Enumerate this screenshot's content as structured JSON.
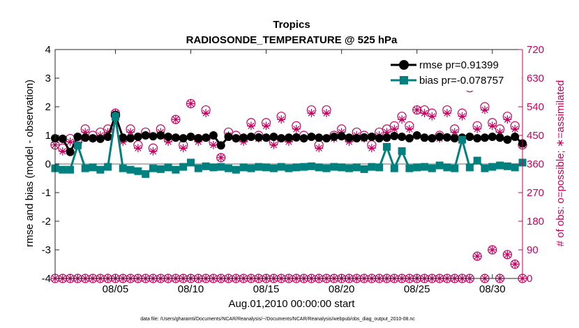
{
  "chart_data": {
    "type": "line",
    "title": "Tropics",
    "subtitle": "RADIOSONDE_TEMPERATURE @ 525 hPa",
    "xlabel": "Aug.01,2010 00:00:00 start",
    "ylabel_left": "rmse and bias (model - observation)",
    "ylabel_right": "# of obs: o=possible; ∗=assimilated",
    "footnote": "data file: /Users/gharamti/Documents/NCAR/Reanalysis/~/Documents/NCAR/Reanalysis/webpub/obs_diag_output_2010-08.nc",
    "xlim": [
      1,
      32
    ],
    "ylim_left": [
      -4,
      4
    ],
    "ylim_right": [
      0,
      720
    ],
    "x_ticks": [
      {
        "value": 5,
        "label": "08/05"
      },
      {
        "value": 10,
        "label": "08/10"
      },
      {
        "value": 15,
        "label": "08/15"
      },
      {
        "value": 20,
        "label": "08/20"
      },
      {
        "value": 25,
        "label": "08/25"
      },
      {
        "value": 30,
        "label": "08/30"
      }
    ],
    "y_ticks_left": [
      -4,
      -3,
      -2,
      -1,
      0,
      1,
      2,
      3,
      4
    ],
    "y_ticks_right": [
      0,
      90,
      180,
      270,
      360,
      450,
      540,
      630,
      720
    ],
    "colors": {
      "rmse": "#000000",
      "bias": "#00807f",
      "obs": "#c8005f",
      "zero_line": "#b3b3b3"
    },
    "legend": [
      {
        "label": "rmse pr=0.91399",
        "color": "#000000",
        "marker": "circle"
      },
      {
        "label": "bias pr=-0.078757",
        "color": "#00807f",
        "marker": "square"
      }
    ],
    "rmse": {
      "x": [
        1.0,
        1.5,
        2.0,
        2.5,
        3.0,
        3.5,
        4.0,
        4.5,
        5.0,
        5.5,
        6.0,
        6.5,
        7.0,
        7.5,
        8.0,
        8.5,
        9.0,
        9.5,
        10.0,
        10.5,
        11.0,
        11.5,
        12.0,
        12.5,
        13.0,
        13.5,
        14.0,
        14.5,
        15.0,
        15.5,
        16.0,
        16.5,
        17.0,
        17.5,
        18.0,
        18.5,
        19.0,
        19.5,
        20.0,
        20.5,
        21.0,
        21.5,
        22.0,
        22.5,
        23.0,
        23.5,
        24.0,
        24.5,
        25.0,
        25.5,
        26.0,
        26.5,
        27.0,
        27.5,
        28.0,
        28.5,
        29.0,
        29.5,
        30.0,
        30.5,
        31.0,
        31.5,
        32.0
      ],
      "y": [
        0.9,
        0.88,
        0.42,
        0.95,
        0.92,
        0.9,
        0.88,
        0.95,
        1.7,
        0.92,
        0.9,
        0.95,
        1.0,
        0.97,
        1.0,
        0.95,
        0.92,
        0.9,
        0.95,
        0.9,
        0.92,
        1.0,
        0.65,
        0.95,
        0.9,
        0.92,
        0.95,
        0.93,
        0.92,
        0.95,
        0.9,
        0.92,
        0.93,
        0.9,
        0.95,
        0.92,
        0.9,
        0.95,
        0.97,
        0.92,
        0.9,
        0.93,
        0.95,
        0.9,
        0.92,
        0.98,
        0.95,
        0.9,
        1.0,
        0.92,
        0.9,
        0.95,
        0.93,
        0.9,
        0.92,
        0.95,
        0.9,
        0.92,
        0.95,
        0.92,
        0.85,
        0.95,
        0.72
      ]
    },
    "bias": {
      "x": [
        1.0,
        1.5,
        2.0,
        2.5,
        3.0,
        3.5,
        4.0,
        4.5,
        5.0,
        5.5,
        6.0,
        6.5,
        7.0,
        7.5,
        8.0,
        8.5,
        9.0,
        9.5,
        10.0,
        10.5,
        11.0,
        11.5,
        12.0,
        12.5,
        13.0,
        13.5,
        14.0,
        14.5,
        15.0,
        15.5,
        16.0,
        16.5,
        17.0,
        17.5,
        18.0,
        18.5,
        19.0,
        19.5,
        20.0,
        20.5,
        21.0,
        21.5,
        22.0,
        22.5,
        23.0,
        23.5,
        24.0,
        24.5,
        25.0,
        25.5,
        26.0,
        26.5,
        27.0,
        27.5,
        28.0,
        28.5,
        29.0,
        29.5,
        30.0,
        30.5,
        31.0,
        31.5,
        32.0
      ],
      "y": [
        -0.15,
        -0.2,
        -0.2,
        0.65,
        -0.15,
        -0.12,
        -0.2,
        -0.1,
        1.65,
        -0.15,
        -0.2,
        -0.25,
        -0.35,
        -0.15,
        -0.18,
        -0.12,
        -0.2,
        -0.1,
        0.05,
        -0.15,
        -0.08,
        -0.12,
        -0.1,
        -0.15,
        -0.2,
        -0.12,
        -0.15,
        -0.1,
        -0.12,
        -0.15,
        -0.1,
        -0.15,
        -0.12,
        -0.1,
        -0.08,
        -0.12,
        -0.15,
        -0.1,
        -0.12,
        -0.15,
        -0.12,
        -0.18,
        -0.1,
        -0.12,
        0.6,
        -0.15,
        0.45,
        -0.15,
        -0.12,
        -0.1,
        -0.15,
        -0.05,
        -0.12,
        -0.15,
        0.85,
        -0.12,
        0.12,
        -0.15,
        -0.1,
        -0.05,
        -0.08,
        -0.12,
        0.05
      ]
    },
    "obs_possible": {
      "x": [
        1.0,
        1.5,
        2.0,
        2.5,
        3.0,
        3.5,
        4.0,
        4.5,
        5.0,
        5.5,
        6.0,
        6.5,
        7.0,
        7.5,
        8.0,
        8.5,
        9.0,
        9.5,
        10.0,
        10.5,
        11.0,
        11.5,
        12.0,
        12.5,
        13.0,
        13.5,
        14.0,
        14.5,
        15.0,
        15.5,
        16.0,
        16.5,
        17.0,
        17.5,
        18.0,
        18.5,
        19.0,
        19.5,
        20.0,
        20.5,
        21.0,
        21.5,
        22.0,
        22.5,
        23.0,
        23.5,
        24.0,
        24.5,
        25.0,
        25.5,
        26.0,
        26.5,
        27.0,
        27.5,
        28.0,
        28.5,
        29.0,
        29.5,
        30.0,
        30.5,
        31.0,
        31.5,
        32.0
      ],
      "y": [
        420,
        410,
        440,
        430,
        470,
        450,
        460,
        470,
        520,
        440,
        470,
        420,
        460,
        410,
        470,
        440,
        500,
        420,
        550,
        440,
        530,
        430,
        380,
        460,
        450,
        440,
        490,
        450,
        490,
        430,
        510,
        440,
        480,
        450,
        530,
        420,
        530,
        450,
        470,
        440,
        460,
        450,
        420,
        460,
        470,
        480,
        510,
        480,
        530,
        530,
        520,
        450,
        530,
        470,
        520,
        600,
        480,
        540,
        490,
        470,
        510,
        480,
        420
      ]
    },
    "obs_assimilated": {
      "x": [
        1.0,
        1.5,
        2.0,
        2.5,
        3.0,
        3.5,
        4.0,
        4.5,
        5.0,
        5.5,
        6.0,
        6.5,
        7.0,
        7.5,
        8.0,
        8.5,
        9.0,
        9.5,
        10.0,
        10.5,
        11.0,
        11.5,
        12.0,
        12.5,
        13.0,
        13.5,
        14.0,
        14.5,
        15.0,
        15.5,
        16.0,
        16.5,
        17.0,
        17.5,
        18.0,
        18.5,
        19.0,
        19.5,
        20.0,
        20.5,
        21.0,
        21.5,
        22.0,
        22.5,
        23.0,
        23.5,
        24.0,
        24.5,
        25.0,
        25.5,
        26.0,
        26.5,
        27.0,
        27.5,
        28.0,
        28.5,
        29.0,
        29.5,
        30.0,
        30.5,
        31.0,
        31.5,
        32.0
      ],
      "y": [
        420,
        400,
        430,
        420,
        460,
        440,
        450,
        460,
        520,
        430,
        460,
        410,
        450,
        400,
        460,
        430,
        500,
        410,
        550,
        430,
        520,
        420,
        380,
        450,
        440,
        430,
        480,
        440,
        480,
        420,
        500,
        430,
        470,
        440,
        520,
        410,
        520,
        440,
        460,
        430,
        450,
        440,
        410,
        450,
        460,
        470,
        500,
        470,
        530,
        520,
        510,
        440,
        520,
        460,
        510,
        610,
        470,
        530,
        480,
        460,
        500,
        470,
        420
      ]
    },
    "obs_possible_low": {
      "x": [
        1.0,
        1.5,
        2.0,
        2.5,
        3.0,
        3.5,
        4.0,
        4.5,
        5.0,
        5.5,
        6.0,
        6.5,
        7.0,
        7.5,
        8.0,
        8.5,
        9.0,
        9.5,
        10.0,
        10.5,
        11.0,
        11.5,
        12.0,
        12.5,
        13.0,
        13.5,
        14.0,
        14.5,
        15.0,
        15.5,
        16.0,
        16.5,
        17.0,
        17.5,
        18.0,
        18.5,
        19.0,
        19.5,
        20.0,
        20.5,
        21.0,
        21.5,
        22.0,
        22.5,
        23.0,
        23.5,
        24.0,
        24.5,
        25.0,
        25.5,
        26.0,
        26.5,
        27.0,
        27.5,
        28.0,
        28.5,
        29.0,
        29.5,
        30.0,
        30.5,
        31.0,
        31.5,
        32.0
      ],
      "y": [
        0,
        0,
        0,
        0,
        0,
        0,
        0,
        0,
        0,
        0,
        0,
        0,
        0,
        0,
        0,
        0,
        0,
        0,
        0,
        0,
        0,
        0,
        0,
        0,
        0,
        0,
        0,
        0,
        0,
        0,
        0,
        0,
        0,
        0,
        0,
        0,
        0,
        0,
        0,
        0,
        0,
        0,
        0,
        0,
        0,
        0,
        0,
        0,
        0,
        0,
        0,
        0,
        0,
        0,
        0,
        0,
        70,
        0,
        90,
        0,
        75,
        45,
        0
      ]
    },
    "obs_assimilated_low": {
      "x": [
        1.0,
        1.5,
        2.0,
        2.5,
        3.0,
        3.5,
        4.0,
        4.5,
        5.0,
        5.5,
        6.0,
        6.5,
        7.0,
        7.5,
        8.0,
        8.5,
        9.0,
        9.5,
        10.0,
        10.5,
        11.0,
        11.5,
        12.0,
        12.5,
        13.0,
        13.5,
        14.0,
        14.5,
        15.0,
        15.5,
        16.0,
        16.5,
        17.0,
        17.5,
        18.0,
        18.5,
        19.0,
        19.5,
        20.0,
        20.5,
        21.0,
        21.5,
        22.0,
        22.5,
        23.0,
        23.5,
        24.0,
        24.5,
        25.0,
        25.5,
        26.0,
        26.5,
        27.0,
        27.5,
        28.0,
        28.5,
        29.0,
        29.5,
        30.0,
        30.5,
        31.0,
        31.5,
        32.0
      ],
      "y": [
        0,
        0,
        0,
        0,
        0,
        0,
        0,
        0,
        0,
        0,
        0,
        0,
        0,
        0,
        0,
        0,
        0,
        0,
        0,
        0,
        0,
        0,
        0,
        0,
        0,
        0,
        0,
        0,
        0,
        0,
        0,
        0,
        0,
        0,
        0,
        0,
        0,
        0,
        0,
        0,
        0,
        0,
        0,
        0,
        0,
        0,
        0,
        0,
        0,
        0,
        0,
        0,
        0,
        0,
        0,
        0,
        70,
        0,
        90,
        0,
        75,
        45,
        0
      ]
    }
  }
}
